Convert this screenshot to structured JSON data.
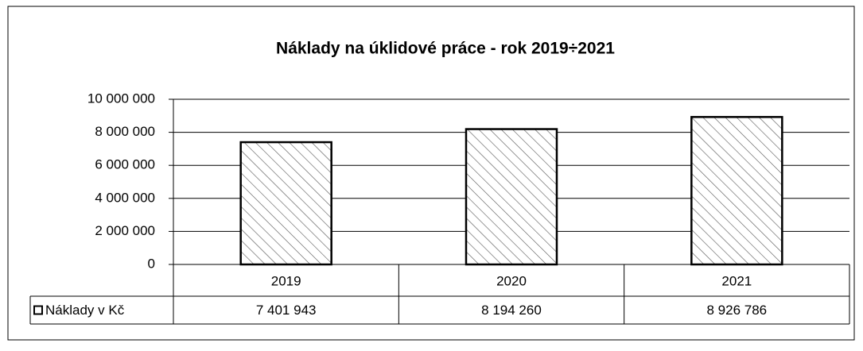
{
  "chart_data": {
    "type": "bar",
    "title": "Náklady na úklidové práce - rok 2019÷2021",
    "categories": [
      "2019",
      "2020",
      "2021"
    ],
    "series": [
      {
        "name": "Náklady v Kč",
        "values": [
          7401943,
          8194260,
          8926786
        ],
        "value_labels": [
          "7 401 943",
          "8 194 260",
          "8 926 786"
        ]
      }
    ],
    "ylim": [
      0,
      10000000
    ],
    "yticks": [
      0,
      {
        "value": 2000000,
        "label": "2 000 000"
      },
      {
        "value": 4000000,
        "label": "4 000 000"
      },
      {
        "value": 6000000,
        "label": "6 000 000"
      },
      {
        "value": 8000000,
        "label": "8 000 000"
      },
      {
        "value": 10000000,
        "label": "10 000 000"
      }
    ],
    "grid": true
  }
}
